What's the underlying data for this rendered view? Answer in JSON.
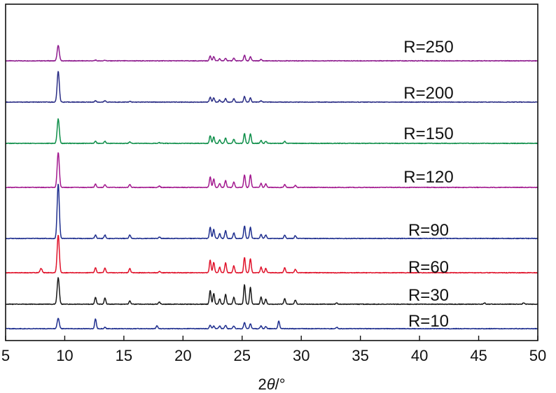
{
  "chart_data": {
    "type": "line",
    "title": "",
    "xlabel": "2θ/°",
    "xlabel_parts": {
      "num": "2",
      "var": "θ",
      "unit": "/°"
    },
    "ylabel": "",
    "xlim": [
      5,
      50
    ],
    "xticks": [
      5,
      10,
      15,
      20,
      25,
      30,
      35,
      40,
      45,
      50
    ],
    "yticks_shown": false,
    "grid": false,
    "legend": "inline labels above each curve",
    "series": [
      {
        "name": "R=250",
        "color": "#8e1b8e",
        "peaks": [
          [
            9.45,
            22
          ],
          [
            12.6,
            1
          ],
          [
            13.4,
            1
          ],
          [
            22.3,
            7
          ],
          [
            22.6,
            6
          ],
          [
            23.1,
            3
          ],
          [
            23.6,
            4
          ],
          [
            24.3,
            4
          ],
          [
            25.2,
            8
          ],
          [
            25.7,
            6
          ],
          [
            26.6,
            2
          ]
        ]
      },
      {
        "name": "R=200",
        "color": "#2b2e86",
        "peaks": [
          [
            9.45,
            44
          ],
          [
            12.6,
            2
          ],
          [
            13.4,
            2
          ],
          [
            15.5,
            1
          ],
          [
            22.3,
            7
          ],
          [
            22.6,
            6
          ],
          [
            23.1,
            3
          ],
          [
            23.6,
            5
          ],
          [
            24.3,
            5
          ],
          [
            25.2,
            8
          ],
          [
            25.7,
            6
          ],
          [
            26.6,
            2
          ]
        ]
      },
      {
        "name": "R=150",
        "color": "#0f8f4a",
        "peaks": [
          [
            9.45,
            35
          ],
          [
            12.6,
            3
          ],
          [
            13.4,
            3
          ],
          [
            15.5,
            2
          ],
          [
            18.0,
            1
          ],
          [
            22.3,
            11
          ],
          [
            22.6,
            9
          ],
          [
            23.1,
            5
          ],
          [
            23.6,
            8
          ],
          [
            24.3,
            6
          ],
          [
            25.2,
            14
          ],
          [
            25.7,
            14
          ],
          [
            26.6,
            4
          ],
          [
            27.0,
            3
          ],
          [
            28.6,
            3
          ]
        ]
      },
      {
        "name": "R=120",
        "color": "#a3198f",
        "peaks": [
          [
            9.45,
            50
          ],
          [
            12.6,
            5
          ],
          [
            13.4,
            4
          ],
          [
            15.5,
            4
          ],
          [
            18.0,
            2
          ],
          [
            22.3,
            15
          ],
          [
            22.6,
            12
          ],
          [
            23.1,
            6
          ],
          [
            23.6,
            10
          ],
          [
            24.3,
            8
          ],
          [
            25.2,
            18
          ],
          [
            25.7,
            18
          ],
          [
            26.6,
            6
          ],
          [
            27.0,
            5
          ],
          [
            28.6,
            4
          ],
          [
            29.5,
            3
          ]
        ]
      },
      {
        "name": "R=90",
        "color": "#1f2f8f",
        "peaks": [
          [
            9.45,
            78
          ],
          [
            12.6,
            5
          ],
          [
            13.4,
            5
          ],
          [
            15.5,
            5
          ],
          [
            18.0,
            2
          ],
          [
            22.3,
            16
          ],
          [
            22.6,
            13
          ],
          [
            23.1,
            7
          ],
          [
            23.6,
            11
          ],
          [
            24.3,
            8
          ],
          [
            25.2,
            18
          ],
          [
            25.7,
            16
          ],
          [
            26.6,
            6
          ],
          [
            27.0,
            5
          ],
          [
            28.6,
            5
          ],
          [
            29.5,
            4
          ]
        ]
      },
      {
        "name": "R=60",
        "color": "#e0122a",
        "peaks": [
          [
            8.0,
            6
          ],
          [
            9.45,
            54
          ],
          [
            12.6,
            7
          ],
          [
            13.4,
            7
          ],
          [
            15.5,
            6
          ],
          [
            18.0,
            2
          ],
          [
            22.3,
            18
          ],
          [
            22.6,
            15
          ],
          [
            23.1,
            8
          ],
          [
            23.6,
            14
          ],
          [
            24.3,
            10
          ],
          [
            25.2,
            22
          ],
          [
            25.7,
            20
          ],
          [
            26.6,
            8
          ],
          [
            27.0,
            6
          ],
          [
            28.6,
            7
          ],
          [
            29.5,
            5
          ]
        ]
      },
      {
        "name": "R=30",
        "color": "#1a1a1a",
        "peaks": [
          [
            9.45,
            38
          ],
          [
            12.6,
            10
          ],
          [
            13.4,
            9
          ],
          [
            15.5,
            5
          ],
          [
            18.0,
            3
          ],
          [
            22.3,
            20
          ],
          [
            22.6,
            15
          ],
          [
            23.1,
            8
          ],
          [
            23.6,
            14
          ],
          [
            24.3,
            10
          ],
          [
            25.2,
            28
          ],
          [
            25.7,
            24
          ],
          [
            26.6,
            10
          ],
          [
            27.0,
            7
          ],
          [
            28.6,
            8
          ],
          [
            29.5,
            6
          ],
          [
            33.0,
            2
          ],
          [
            45.5,
            2
          ],
          [
            48.8,
            2
          ]
        ]
      },
      {
        "name": "R=10",
        "color": "#1f2f8f",
        "peaks": [
          [
            9.45,
            15
          ],
          [
            12.6,
            14
          ],
          [
            13.4,
            2
          ],
          [
            17.8,
            4
          ],
          [
            22.3,
            5
          ],
          [
            22.6,
            4
          ],
          [
            23.1,
            4
          ],
          [
            23.6,
            5
          ],
          [
            24.3,
            4
          ],
          [
            25.2,
            9
          ],
          [
            25.7,
            7
          ],
          [
            26.6,
            4
          ],
          [
            27.0,
            3
          ],
          [
            28.1,
            11
          ],
          [
            33.0,
            2
          ]
        ]
      }
    ]
  }
}
